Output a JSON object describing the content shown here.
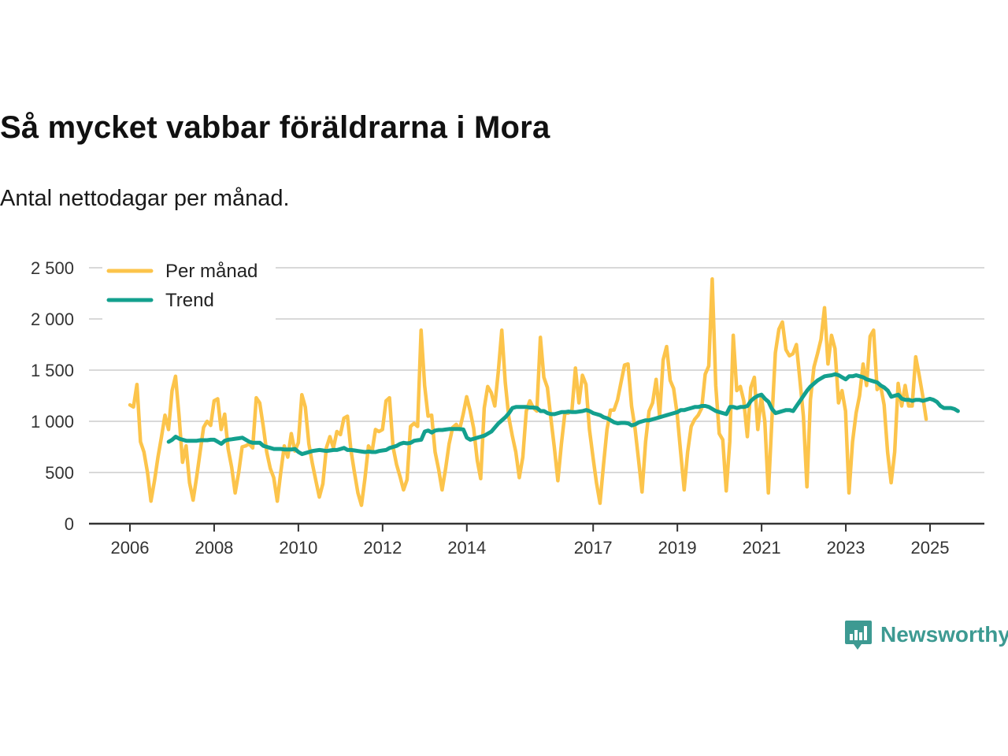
{
  "chart_data": {
    "type": "line",
    "title": "Så mycket vabbar föräldrarna i Mora",
    "subtitle": "Antal nettodagar per månad.",
    "xlabel": "",
    "ylabel": "",
    "ylim": [
      0,
      2500
    ],
    "yticks": [
      0,
      500,
      1000,
      1500,
      2000,
      2500
    ],
    "ytick_labels": [
      "0",
      "500",
      "1 000",
      "1 500",
      "2 000",
      "2 500"
    ],
    "xticks": [
      2006,
      2008,
      2010,
      2012,
      2014,
      2017,
      2019,
      2021,
      2023,
      2025
    ],
    "xtick_labels": [
      "2006",
      "2008",
      "2010",
      "2012",
      "2014",
      "2017",
      "2019",
      "2021",
      "2023",
      "2025"
    ],
    "xlim": [
      2005.9,
      2025.6
    ],
    "grid": true,
    "legend": "top-left",
    "series": [
      {
        "name": "Per månad",
        "color": "#fcc44b",
        "x0": 2006.0,
        "step": 0.0833,
        "values": [
          1160,
          1140,
          1360,
          800,
          700,
          500,
          220,
          420,
          650,
          850,
          1060,
          920,
          1300,
          1440,
          1050,
          600,
          760,
          400,
          230,
          450,
          700,
          940,
          1000,
          960,
          1200,
          1220,
          920,
          1070,
          730,
          550,
          300,
          500,
          750,
          760,
          780,
          740,
          1230,
          1180,
          950,
          700,
          540,
          450,
          220,
          500,
          760,
          650,
          880,
          710,
          790,
          1260,
          1140,
          780,
          590,
          420,
          260,
          390,
          740,
          850,
          740,
          900,
          870,
          1030,
          1050,
          720,
          500,
          300,
          180,
          440,
          760,
          700,
          920,
          900,
          920,
          1200,
          1230,
          750,
          580,
          460,
          330,
          430,
          950,
          980,
          950,
          1890,
          1350,
          1050,
          1060,
          700,
          530,
          330,
          540,
          780,
          940,
          970,
          920,
          1070,
          1240,
          1100,
          930,
          620,
          440,
          1130,
          1340,
          1280,
          1150,
          1480,
          1890,
          1380,
          1040,
          860,
          700,
          450,
          650,
          1100,
          1200,
          1130,
          1100,
          1820,
          1430,
          1330,
          1030,
          740,
          420,
          780,
          1080,
          1080,
          1100,
          1520,
          1180,
          1450,
          1360,
          920,
          650,
          400,
          200,
          570,
          920,
          1110,
          1110,
          1210,
          1380,
          1550,
          1560,
          1150,
          930,
          620,
          310,
          800,
          1100,
          1180,
          1410,
          1050,
          1600,
          1730,
          1400,
          1320,
          1070,
          700,
          330,
          700,
          950,
          1020,
          1060,
          1130,
          1460,
          1540,
          2390,
          1350,
          880,
          820,
          320,
          800,
          1840,
          1300,
          1340,
          1200,
          850,
          1330,
          1430,
          920,
          1240,
          1000,
          300,
          1000,
          1670,
          1900,
          1970,
          1700,
          1640,
          1660,
          1750,
          1400,
          1050,
          360,
          1210,
          1530,
          1660,
          1800,
          2110,
          1560,
          1840,
          1710,
          1180,
          1300,
          1100,
          300,
          800,
          1080,
          1250,
          1560,
          1350,
          1830,
          1890,
          1310,
          1350,
          1160,
          700,
          400,
          700,
          1370,
          1150,
          1350,
          1150,
          1150,
          1630,
          1450,
          1250,
          1020
        ]
      },
      {
        "name": "Trend",
        "color": "#13a08e",
        "x0": 2006.92,
        "step": 0.0833,
        "values": [
          800,
          820,
          850,
          830,
          820,
          810,
          810,
          810,
          810,
          815,
          815,
          815,
          820,
          820,
          800,
          780,
          810,
          820,
          825,
          830,
          835,
          840,
          820,
          800,
          790,
          790,
          790,
          760,
          750,
          740,
          730,
          730,
          730,
          725,
          725,
          725,
          730,
          700,
          680,
          690,
          700,
          710,
          715,
          720,
          715,
          710,
          715,
          720,
          720,
          730,
          740,
          720,
          720,
          715,
          710,
          705,
          700,
          705,
          700,
          700,
          710,
          715,
          720,
          740,
          750,
          760,
          780,
          790,
          785,
          790,
          810,
          815,
          820,
          900,
          910,
          890,
          910,
          915,
          915,
          920,
          925,
          925,
          925,
          925,
          920,
          840,
          820,
          830,
          840,
          850,
          860,
          880,
          900,
          940,
          980,
          1010,
          1040,
          1080,
          1130,
          1140,
          1140,
          1140,
          1140,
          1135,
          1135,
          1130,
          1100,
          1100,
          1080,
          1070,
          1070,
          1080,
          1090,
          1090,
          1095,
          1090,
          1090,
          1095,
          1100,
          1110,
          1100,
          1080,
          1070,
          1060,
          1040,
          1030,
          1010,
          990,
          980,
          985,
          985,
          980,
          960,
          970,
          990,
          1000,
          1010,
          1010,
          1020,
          1030,
          1040,
          1050,
          1060,
          1070,
          1080,
          1090,
          1110,
          1110,
          1120,
          1130,
          1140,
          1140,
          1150,
          1150,
          1140,
          1120,
          1100,
          1090,
          1080,
          1070,
          1140,
          1140,
          1130,
          1140,
          1140,
          1150,
          1200,
          1230,
          1250,
          1260,
          1220,
          1190,
          1120,
          1080,
          1090,
          1100,
          1110,
          1110,
          1100,
          1150,
          1200,
          1250,
          1300,
          1340,
          1370,
          1400,
          1420,
          1440,
          1445,
          1450,
          1460,
          1450,
          1430,
          1410,
          1440,
          1440,
          1450,
          1440,
          1430,
          1410,
          1400,
          1390,
          1380,
          1350,
          1330,
          1300,
          1240,
          1250,
          1260,
          1220,
          1210,
          1210,
          1200,
          1210,
          1210,
          1200,
          1210,
          1220,
          1210,
          1190,
          1150,
          1130,
          1130,
          1130,
          1120,
          1100
        ]
      }
    ]
  },
  "brand": {
    "name": "Newsworthy",
    "icon": "bar-chart-speech-bubble-icon",
    "color": "#3d9a92"
  }
}
